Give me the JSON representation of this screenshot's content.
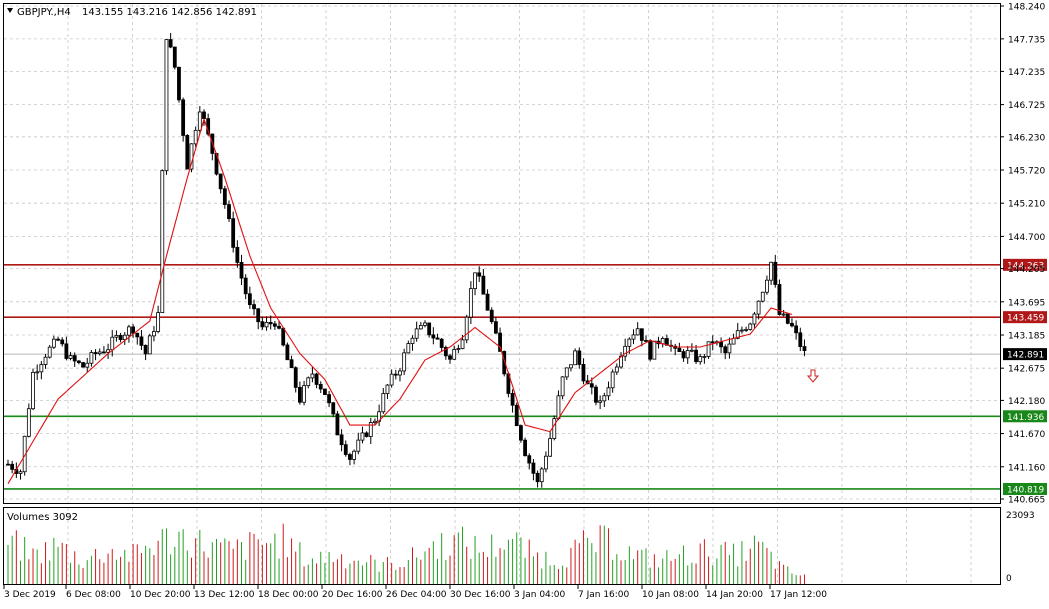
{
  "header": {
    "symbol": "GBPJPY.,H4",
    "ohlc": "143.155 143.216 142.856 142.891"
  },
  "volume_panel": {
    "label": "Volumes 3092",
    "axis_top": "23093",
    "axis_bottom": "0"
  },
  "colors": {
    "background": "#ffffff",
    "grid": "#c8c8c8",
    "candle": "#000000",
    "moving_average": "#e01010",
    "resistance_line": "#b01818",
    "support_line": "#188818",
    "volume_up": "#22a022",
    "volume_down": "#d01818"
  },
  "chart_data": {
    "type": "candlestick",
    "price_axis_ticks": [
      "148.240",
      "147.735",
      "147.235",
      "146.725",
      "146.230",
      "145.720",
      "145.210",
      "144.700",
      "144.205",
      "143.695",
      "143.185",
      "142.675",
      "142.180",
      "141.670",
      "141.160",
      "140.665"
    ],
    "ylim": [
      140.665,
      148.24
    ],
    "time_axis_labels": [
      "3 Dec 2019",
      "6 Dec 08:00",
      "10 Dec 20:00",
      "13 Dec 12:00",
      "18 Dec 00:00",
      "20 Dec 16:00",
      "26 Dec 04:00",
      "30 Dec 16:00",
      "3 Jan 04:00",
      "7 Jan 16:00",
      "10 Jan 08:00",
      "14 Jan 20:00",
      "17 Jan 12:00"
    ],
    "horizontal_levels": [
      {
        "label": "144.263",
        "value": 144.263,
        "kind": "resistance"
      },
      {
        "label": "143.459",
        "value": 143.459,
        "kind": "resistance"
      },
      {
        "label": "141.936",
        "value": 141.936,
        "kind": "support"
      },
      {
        "label": "140.819",
        "value": 140.819,
        "kind": "support"
      }
    ],
    "current_price": {
      "label": "142.891",
      "value": 142.891
    },
    "signal": "sell-arrow",
    "close_path": [
      [
        0,
        141.2
      ],
      [
        3,
        141.1
      ],
      [
        6,
        142.6
      ],
      [
        9,
        142.9
      ],
      [
        12,
        143.1
      ],
      [
        15,
        142.8
      ],
      [
        18,
        142.7
      ],
      [
        21,
        142.9
      ],
      [
        24,
        143.0
      ],
      [
        27,
        143.2
      ],
      [
        30,
        143.3
      ],
      [
        33,
        142.9
      ],
      [
        36,
        143.5
      ],
      [
        38,
        147.8
      ],
      [
        40,
        147.3
      ],
      [
        43,
        145.8
      ],
      [
        46,
        146.7
      ],
      [
        49,
        146.0
      ],
      [
        52,
        145.2
      ],
      [
        55,
        144.3
      ],
      [
        58,
        143.6
      ],
      [
        61,
        143.3
      ],
      [
        64,
        143.4
      ],
      [
        67,
        142.8
      ],
      [
        70,
        142.2
      ],
      [
        73,
        142.6
      ],
      [
        76,
        142.3
      ],
      [
        79,
        141.7
      ],
      [
        82,
        141.3
      ],
      [
        85,
        141.6
      ],
      [
        88,
        141.9
      ],
      [
        91,
        142.4
      ],
      [
        94,
        142.7
      ],
      [
        97,
        143.2
      ],
      [
        100,
        143.3
      ],
      [
        103,
        143.1
      ],
      [
        106,
        142.8
      ],
      [
        109,
        143.2
      ],
      [
        112,
        144.2
      ],
      [
        115,
        143.6
      ],
      [
        118,
        142.9
      ],
      [
        121,
        142.1
      ],
      [
        124,
        141.4
      ],
      [
        127,
        140.9
      ],
      [
        130,
        141.6
      ],
      [
        133,
        142.5
      ],
      [
        136,
        142.9
      ],
      [
        139,
        142.4
      ],
      [
        142,
        142.1
      ],
      [
        145,
        142.6
      ],
      [
        148,
        143.1
      ],
      [
        151,
        143.3
      ],
      [
        154,
        142.9
      ],
      [
        157,
        143.2
      ],
      [
        160,
        142.9
      ],
      [
        163,
        142.9
      ],
      [
        166,
        142.8
      ],
      [
        169,
        143.1
      ],
      [
        172,
        142.9
      ],
      [
        175,
        143.2
      ],
      [
        178,
        143.4
      ],
      [
        181,
        143.9
      ],
      [
        183,
        144.3
      ],
      [
        185,
        143.5
      ],
      [
        188,
        143.3
      ],
      [
        191,
        142.9
      ]
    ],
    "ma_path": [
      [
        0,
        140.9
      ],
      [
        12,
        142.2
      ],
      [
        24,
        142.9
      ],
      [
        34,
        143.4
      ],
      [
        38,
        144.4
      ],
      [
        43,
        145.6
      ],
      [
        47,
        146.5
      ],
      [
        52,
        145.6
      ],
      [
        58,
        144.4
      ],
      [
        63,
        143.6
      ],
      [
        70,
        142.9
      ],
      [
        76,
        142.5
      ],
      [
        82,
        141.8
      ],
      [
        88,
        141.8
      ],
      [
        94,
        142.2
      ],
      [
        100,
        142.8
      ],
      [
        106,
        143.0
      ],
      [
        112,
        143.3
      ],
      [
        118,
        143.0
      ],
      [
        124,
        141.8
      ],
      [
        130,
        141.7
      ],
      [
        136,
        142.3
      ],
      [
        142,
        142.6
      ],
      [
        148,
        142.9
      ],
      [
        154,
        143.1
      ],
      [
        160,
        143.0
      ],
      [
        166,
        143.0
      ],
      [
        172,
        143.1
      ],
      [
        178,
        143.2
      ],
      [
        183,
        143.6
      ],
      [
        188,
        143.5
      ]
    ],
    "volume_profile": [
      [
        0,
        0.9
      ],
      [
        6,
        0.6
      ],
      [
        12,
        0.8
      ],
      [
        18,
        0.5
      ],
      [
        24,
        0.7
      ],
      [
        30,
        0.6
      ],
      [
        36,
        0.9
      ],
      [
        42,
        1.0
      ],
      [
        48,
        0.8
      ],
      [
        54,
        0.7
      ],
      [
        60,
        0.85
      ],
      [
        66,
        0.9
      ],
      [
        72,
        0.5
      ],
      [
        78,
        0.6
      ],
      [
        84,
        0.5
      ],
      [
        90,
        0.4
      ],
      [
        96,
        0.5
      ],
      [
        102,
        0.8
      ],
      [
        108,
        0.9
      ],
      [
        114,
        0.7
      ],
      [
        120,
        0.95
      ],
      [
        126,
        0.6
      ],
      [
        132,
        0.5
      ],
      [
        138,
        0.8
      ],
      [
        144,
        0.9
      ],
      [
        150,
        0.6
      ],
      [
        156,
        0.5
      ],
      [
        162,
        0.6
      ],
      [
        168,
        0.7
      ],
      [
        174,
        0.6
      ],
      [
        180,
        0.8
      ],
      [
        186,
        0.3
      ],
      [
        191,
        0.15
      ]
    ]
  }
}
